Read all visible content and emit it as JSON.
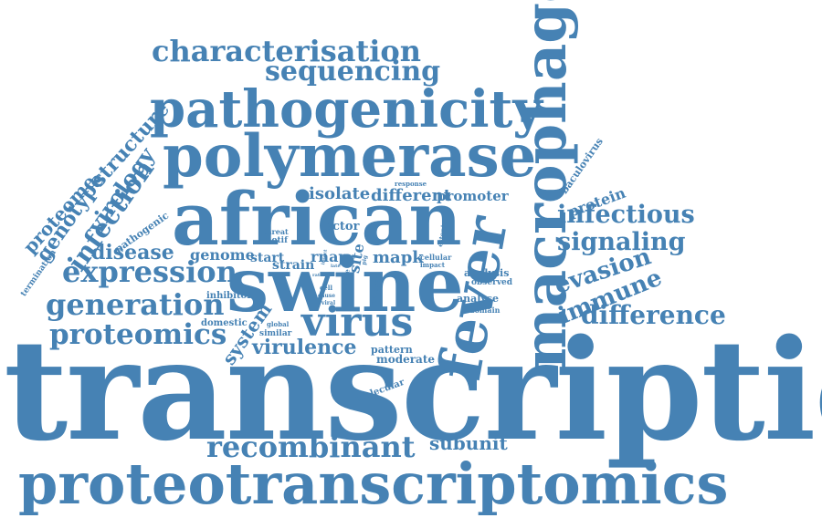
{
  "word_cloud": {
    "color": "#4682b4",
    "words": [
      "transcription",
      "proteotranscriptomics",
      "swine",
      "african",
      "polymerase",
      "pathogenicity",
      "macrophage",
      "fever",
      "virus",
      "expression",
      "generation",
      "proteomics",
      "recombinant",
      "characterisation",
      "sequencing",
      "infectious",
      "signaling",
      "difference",
      "immune",
      "evasion",
      "infection",
      "virology",
      "genotype",
      "structure",
      "proteome",
      "disease",
      "genome",
      "isolate",
      "different",
      "promoter",
      "protein",
      "baculovirus",
      "system",
      "virulence",
      "subunit",
      "mapk",
      "rnap",
      "site",
      "strain",
      "start",
      "factor",
      "motif",
      "threat",
      "pathogenic",
      "termination",
      "domestic",
      "inhibitor",
      "similar",
      "global",
      "pattern",
      "moderate",
      "analysis",
      "observed",
      "analyse",
      "domain",
      "molecular",
      "cell",
      "cause",
      "viral",
      "encode",
      "georgia",
      "cellular",
      "impact",
      "estonia",
      "response",
      "insect",
      "late",
      "pig",
      "rate"
    ]
  }
}
